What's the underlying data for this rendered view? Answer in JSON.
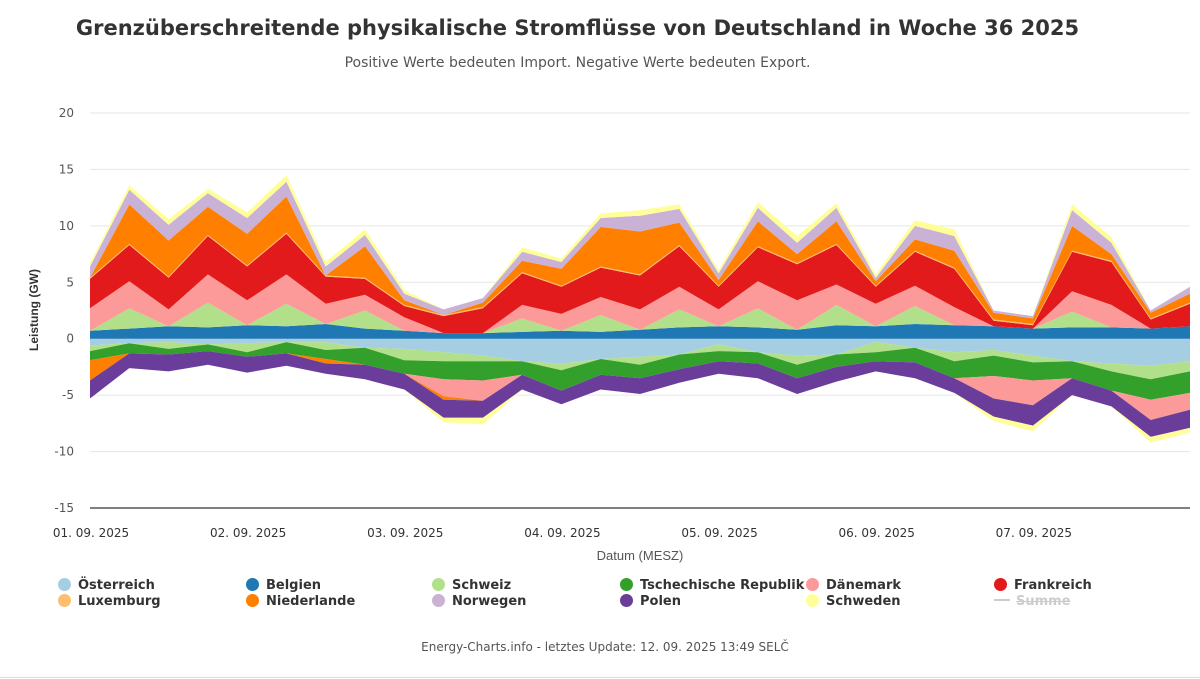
{
  "title": "Grenzüberschreitende physikalische Stromflüsse von Deutschland in Woche 36 2025",
  "subtitle": "Positive Werte bedeuten Import. Negative Werte bedeuten Export.",
  "footer": "Energy-Charts.info - letztes Update: 12. 09. 2025 13:49 SELČ",
  "chart_data": {
    "type": "area",
    "stacked": true,
    "title": "Grenzüberschreitende physikalische Stromflüsse von Deutschland in Woche 36 2025",
    "subtitle": "Positive Werte bedeuten Import. Negative Werte bedeuten Export.",
    "xlabel": "Datum (MESZ)",
    "ylabel": "Leistung (GW)",
    "ylim": [
      -15,
      20
    ],
    "yticks": [
      20,
      15,
      10,
      5,
      0,
      -5,
      -10,
      -15
    ],
    "x_tick_labels": [
      "01. 09. 2025",
      "02. 09. 2025",
      "03. 09. 2025",
      "04. 09. 2025",
      "05. 09. 2025",
      "06. 09. 2025",
      "07. 09. 2025"
    ],
    "x_hours": [
      0,
      6,
      12,
      18,
      24,
      30,
      36,
      42,
      48,
      54,
      60,
      66,
      72,
      78,
      84,
      90,
      96,
      102,
      108,
      114,
      120,
      126,
      132,
      138,
      144,
      150,
      156,
      162,
      168
    ],
    "grid": true,
    "legend_position": "bottom",
    "series": [
      {
        "name": "Österreich",
        "color": "#a6cee3",
        "values": [
          -0.6,
          -0.4,
          -0.3,
          -0.5,
          -0.4,
          -0.3,
          -0.3,
          -0.8,
          -0.9,
          -1.2,
          -1.5,
          -2.0,
          -2.2,
          -1.8,
          -1.6,
          -1.4,
          -0.5,
          -1.2,
          -1.5,
          -1.4,
          -0.3,
          -0.8,
          -1.2,
          -1.0,
          -1.5,
          -2.0,
          -2.2,
          -2.4,
          -2.0
        ]
      },
      {
        "name": "Belgien",
        "color": "#1f78b4",
        "values": [
          0.7,
          0.9,
          1.1,
          1.0,
          1.2,
          1.1,
          1.3,
          0.9,
          0.7,
          0.5,
          0.5,
          0.6,
          0.7,
          0.6,
          0.8,
          1.0,
          1.1,
          1.0,
          0.8,
          1.2,
          1.1,
          1.3,
          1.2,
          1.1,
          0.9,
          1.0,
          1.0,
          0.9,
          1.1
        ]
      },
      {
        "name": "Schweiz",
        "color": "#b2df8a",
        "values": [
          -0.5,
          1.8,
          -0.6,
          2.2,
          -0.8,
          2.0,
          -0.7,
          1.6,
          -1.0,
          -0.8,
          -0.5,
          1.2,
          -0.6,
          1.5,
          -0.7,
          1.6,
          -0.6,
          1.7,
          -0.8,
          1.8,
          -0.9,
          1.6,
          -0.8,
          -0.5,
          -0.6,
          1.4,
          -0.7,
          -1.2,
          -0.9
        ]
      },
      {
        "name": "Tschechische Republik",
        "color": "#33a02c",
        "values": [
          -0.8,
          -0.9,
          -0.5,
          -0.6,
          -0.4,
          -1.0,
          -0.8,
          -1.5,
          -1.2,
          -1.6,
          -1.7,
          -1.2,
          -1.8,
          -1.4,
          -1.2,
          -1.3,
          -0.9,
          -1.0,
          -1.2,
          -1.1,
          -0.8,
          -1.3,
          -1.5,
          -1.8,
          -1.6,
          -1.5,
          -1.7,
          -1.8,
          -1.9
        ]
      },
      {
        "name": "Dänemark",
        "color": "#fb9a99",
        "values": [
          2.0,
          2.4,
          1.5,
          2.5,
          2.2,
          2.6,
          1.8,
          1.4,
          1.2,
          -1.5,
          -1.8,
          1.2,
          1.5,
          1.6,
          1.8,
          2.0,
          1.5,
          2.4,
          2.6,
          1.8,
          2.0,
          1.8,
          1.6,
          -2.0,
          -2.2,
          1.8,
          2.0,
          -1.8,
          -1.5
        ]
      },
      {
        "name": "Frankreich",
        "color": "#e31a1c",
        "values": [
          2.6,
          3.2,
          2.8,
          3.4,
          3.0,
          3.6,
          2.4,
          1.4,
          1.0,
          1.5,
          2.2,
          2.8,
          2.4,
          2.6,
          3.0,
          3.6,
          2.0,
          3.0,
          3.2,
          3.5,
          1.5,
          3.0,
          3.4,
          0.5,
          0.3,
          3.5,
          3.8,
          0.8,
          2.0
        ]
      },
      {
        "name": "Luxemburg",
        "color": "#fdbf6f",
        "values": [
          0.1,
          0.1,
          0.1,
          0.1,
          0.1,
          0.1,
          0.1,
          0.1,
          0.1,
          0.1,
          0.1,
          0.1,
          0.1,
          0.1,
          0.1,
          0.1,
          0.1,
          0.1,
          0.1,
          0.1,
          0.1,
          0.1,
          0.1,
          0.1,
          0.1,
          0.1,
          0.1,
          0.1,
          0.1
        ]
      },
      {
        "name": "Niederlande",
        "color": "#ff7f00",
        "values": [
          -1.8,
          3.5,
          3.2,
          2.5,
          2.8,
          3.2,
          -0.4,
          2.8,
          0.4,
          -0.3,
          0.4,
          1.0,
          1.5,
          3.5,
          3.8,
          2.0,
          0.5,
          2.2,
          0.8,
          2.0,
          0.4,
          1.0,
          1.5,
          0.6,
          0.5,
          2.2,
          0.6,
          0.5,
          0.8
        ]
      },
      {
        "name": "Norwegen",
        "color": "#cab2d6",
        "values": [
          1.0,
          1.3,
          1.4,
          1.2,
          1.4,
          1.3,
          0.8,
          1.0,
          0.6,
          0.5,
          0.4,
          0.8,
          0.6,
          0.8,
          1.4,
          1.2,
          0.6,
          1.2,
          1.0,
          1.2,
          0.3,
          1.2,
          1.3,
          0.2,
          0.2,
          1.4,
          1.0,
          0.2,
          0.6
        ]
      },
      {
        "name": "Polen",
        "color": "#6a3d9a",
        "values": [
          -1.6,
          -1.3,
          -1.5,
          -1.2,
          -1.4,
          -1.1,
          -0.9,
          -1.3,
          -1.4,
          -1.6,
          -1.5,
          -1.3,
          -1.2,
          -1.3,
          -1.4,
          -1.2,
          -1.1,
          -1.3,
          -1.4,
          -1.3,
          -0.9,
          -1.4,
          -1.3,
          -1.6,
          -1.8,
          -1.5,
          -1.4,
          -1.5,
          -1.6
        ]
      },
      {
        "name": "Schweden",
        "color": "#ffff99",
        "values": [
          0.3,
          0.4,
          0.5,
          0.4,
          0.5,
          0.6,
          0.4,
          0.5,
          0.3,
          -0.4,
          -0.6,
          0.4,
          0.3,
          0.4,
          0.5,
          0.4,
          0.3,
          0.5,
          0.6,
          0.4,
          0.3,
          0.5,
          0.6,
          -0.4,
          -0.5,
          0.5,
          0.5,
          -0.5,
          -0.4
        ]
      },
      {
        "name": "Summe",
        "color": "#cccccc",
        "hidden": true,
        "values": []
      }
    ]
  }
}
